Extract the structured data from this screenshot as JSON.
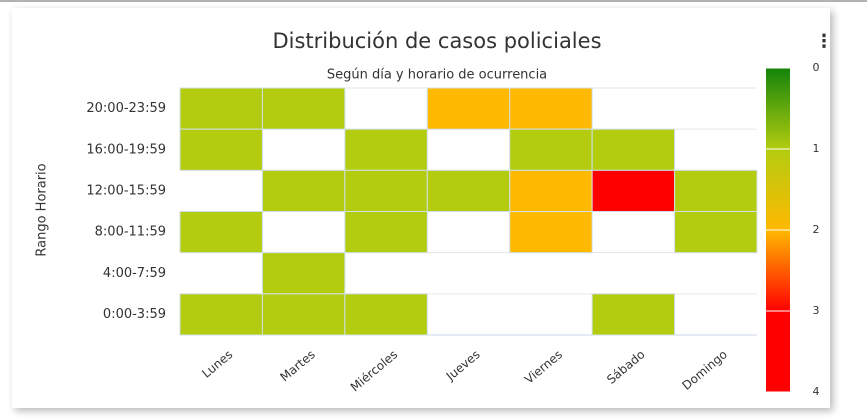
{
  "chart_data": {
    "type": "heatmap",
    "title": "Distribución de casos policiales",
    "subtitle": "Según día y horario de ocurrencia",
    "y_label": "Rango Horario",
    "x": [
      "Lunes",
      "Martes",
      "Miércoles",
      "Jueves",
      "Viernes",
      "Sábado",
      "Domingo"
    ],
    "y": [
      "20:00-23:59",
      "16:00-19:59",
      "12:00-15:59",
      "8:00-11:59",
      "4:00-7:59",
      "0:00-3:59"
    ],
    "values": [
      [
        1,
        1,
        null,
        2,
        2,
        null,
        null
      ],
      [
        1,
        null,
        1,
        null,
        1,
        1,
        null
      ],
      [
        null,
        1,
        1,
        1,
        2,
        4,
        1
      ],
      [
        1,
        null,
        1,
        null,
        2,
        null,
        1
      ],
      [
        null,
        1,
        null,
        null,
        null,
        null,
        null
      ],
      [
        1,
        1,
        1,
        null,
        null,
        1,
        null
      ]
    ],
    "colorscale": [
      [
        0,
        "#13840a"
      ],
      [
        1,
        "#b3cc10"
      ],
      [
        2,
        "#ffb900"
      ],
      [
        3,
        "#ff0000"
      ],
      [
        4,
        "#ff0000"
      ]
    ],
    "zlim": [
      0,
      4
    ],
    "zticks": [
      0,
      1,
      2,
      3,
      4
    ]
  }
}
